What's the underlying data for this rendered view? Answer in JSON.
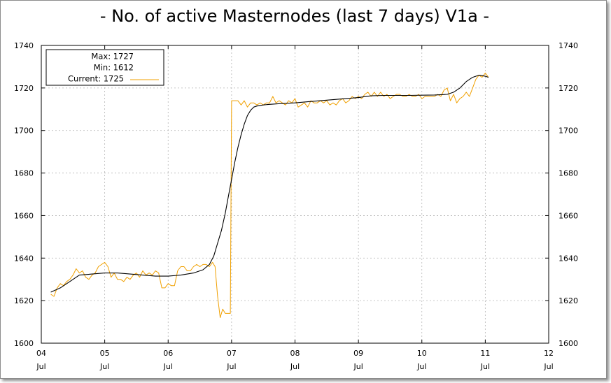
{
  "chart_data": {
    "type": "line",
    "title": "- No. of active Masternodes (last 7 days) V1a -",
    "xlabel": "",
    "ylabel": "",
    "ylim": [
      1600,
      1740
    ],
    "yticks": [
      "1600",
      "1620",
      "1640",
      "1660",
      "1680",
      "1700",
      "1720",
      "1740"
    ],
    "xticks": [
      {
        "day": "04",
        "month": "Jul"
      },
      {
        "day": "05",
        "month": "Jul"
      },
      {
        "day": "06",
        "month": "Jul"
      },
      {
        "day": "07",
        "month": "Jul"
      },
      {
        "day": "08",
        "month": "Jul"
      },
      {
        "day": "09",
        "month": "Jul"
      },
      {
        "day": "10",
        "month": "Jul"
      },
      {
        "day": "11",
        "month": "Jul"
      },
      {
        "day": "12",
        "month": "Jul"
      }
    ],
    "xlim_days": [
      4,
      12
    ],
    "grid": true,
    "legend": {
      "placement": "top-left",
      "max_label": "Max: 1727",
      "min_label": "Min: 1612",
      "current_label": "Current: 1725"
    },
    "colors": {
      "raw": "#f0a000",
      "smooth": "#000000",
      "grid": "#b4b4b4"
    },
    "series": [
      {
        "name": "Current",
        "x": [
          4.15,
          4.2,
          4.25,
          4.3,
          4.35,
          4.4,
          4.45,
          4.5,
          4.55,
          4.6,
          4.65,
          4.7,
          4.75,
          4.8,
          4.85,
          4.9,
          4.95,
          5.0,
          5.05,
          5.1,
          5.15,
          5.2,
          5.25,
          5.3,
          5.35,
          5.4,
          5.45,
          5.5,
          5.55,
          5.6,
          5.65,
          5.7,
          5.75,
          5.8,
          5.85,
          5.9,
          5.95,
          6.0,
          6.05,
          6.1,
          6.15,
          6.2,
          6.25,
          6.3,
          6.35,
          6.4,
          6.45,
          6.5,
          6.55,
          6.6,
          6.65,
          6.7,
          6.74,
          6.78,
          6.82,
          6.86,
          6.9,
          6.95,
          6.98,
          7.0,
          7.05,
          7.1,
          7.15,
          7.2,
          7.25,
          7.3,
          7.35,
          7.4,
          7.45,
          7.5,
          7.55,
          7.6,
          7.65,
          7.7,
          7.75,
          7.8,
          7.85,
          7.9,
          7.95,
          8.0,
          8.05,
          8.1,
          8.15,
          8.2,
          8.25,
          8.3,
          8.35,
          8.4,
          8.45,
          8.5,
          8.55,
          8.6,
          8.65,
          8.7,
          8.75,
          8.8,
          8.85,
          8.9,
          8.95,
          9.0,
          9.05,
          9.1,
          9.15,
          9.2,
          9.25,
          9.3,
          9.35,
          9.4,
          9.45,
          9.5,
          9.55,
          9.6,
          9.65,
          9.7,
          9.75,
          9.8,
          9.85,
          9.9,
          9.95,
          10.0,
          10.05,
          10.1,
          10.15,
          10.2,
          10.25,
          10.3,
          10.35,
          10.4,
          10.45,
          10.5,
          10.55,
          10.6,
          10.65,
          10.7,
          10.75,
          10.8,
          10.85,
          10.9,
          10.95,
          11.0,
          11.05
        ],
        "y": [
          1623,
          1622,
          1626,
          1628,
          1627,
          1629,
          1630,
          1632,
          1635,
          1633,
          1634,
          1631,
          1630,
          1632,
          1633,
          1636,
          1637,
          1638,
          1636,
          1631,
          1633,
          1630,
          1630,
          1629,
          1631,
          1630,
          1632,
          1633,
          1631,
          1634,
          1632,
          1633,
          1632,
          1634,
          1633,
          1626,
          1626,
          1628,
          1627,
          1627,
          1634,
          1636,
          1636,
          1634,
          1634,
          1636,
          1637,
          1636,
          1637,
          1637,
          1636,
          1638,
          1636,
          1622,
          1612,
          1616,
          1614,
          1614,
          1614,
          1714,
          1714,
          1714,
          1712,
          1714,
          1711,
          1713,
          1713,
          1712,
          1713,
          1712,
          1713,
          1713,
          1716,
          1713,
          1714,
          1713,
          1712,
          1714,
          1713,
          1715,
          1711,
          1712,
          1713,
          1711,
          1714,
          1713,
          1713,
          1714,
          1713,
          1714,
          1712,
          1713,
          1712,
          1714,
          1715,
          1713,
          1714,
          1716,
          1715,
          1716,
          1715,
          1717,
          1718,
          1716,
          1718,
          1716,
          1718,
          1716,
          1717,
          1715,
          1716,
          1717,
          1717,
          1716,
          1716,
          1717,
          1716,
          1716,
          1717,
          1715,
          1716,
          1716,
          1716,
          1716,
          1717,
          1716,
          1719,
          1720,
          1714,
          1717,
          1713,
          1715,
          1716,
          1718,
          1716,
          1720,
          1724,
          1726,
          1725,
          1727,
          1725
        ]
      },
      {
        "name": "",
        "x": [
          4.15,
          4.3,
          4.45,
          4.6,
          4.8,
          5.0,
          5.2,
          5.4,
          5.6,
          5.8,
          6.0,
          6.2,
          6.4,
          6.55,
          6.65,
          6.72,
          6.78,
          6.84,
          6.9,
          6.95,
          7.0,
          7.05,
          7.1,
          7.15,
          7.2,
          7.25,
          7.3,
          7.35,
          7.4,
          7.5,
          7.6,
          7.8,
          8.0,
          8.2,
          8.4,
          8.6,
          8.8,
          9.0,
          9.2,
          9.4,
          9.6,
          9.8,
          10.0,
          10.2,
          10.4,
          10.5,
          10.6,
          10.7,
          10.8,
          10.9,
          11.0,
          11.05
        ],
        "y": [
          1624,
          1626,
          1629,
          1632,
          1632.5,
          1633,
          1633,
          1632.5,
          1632,
          1631.5,
          1631.5,
          1632,
          1633,
          1634.5,
          1637,
          1641,
          1647,
          1653,
          1661,
          1669,
          1677,
          1685,
          1692,
          1698,
          1703,
          1707,
          1709.5,
          1711,
          1711.5,
          1712,
          1712.3,
          1712.7,
          1713,
          1713.5,
          1714,
          1714.5,
          1715,
          1715.5,
          1716.3,
          1716.5,
          1716.5,
          1716.5,
          1716.6,
          1716.7,
          1717,
          1718,
          1720,
          1723,
          1725,
          1726,
          1725.5,
          1725
        ]
      }
    ]
  }
}
